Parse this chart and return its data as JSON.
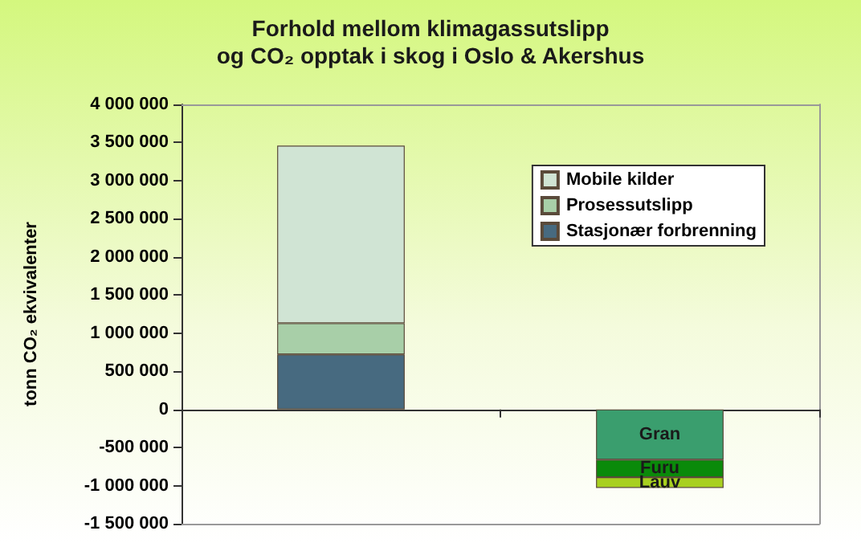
{
  "chart_data": {
    "type": "bar",
    "title": "Forhold mellom klimagassutslipp\nog CO₂ opptak i skog i Oslo & Akershus",
    "ylabel": "tonn CO₂ ekvivalenter",
    "categories": [
      null,
      null
    ],
    "stacked": true,
    "series": [
      {
        "name": "Stasjonær forbrenning",
        "color": "#476a80",
        "values": [
          720000,
          null
        ]
      },
      {
        "name": "Prosessutslipp",
        "color": "#a8cfa8",
        "values": [
          410000,
          null
        ]
      },
      {
        "name": "Mobile kilder",
        "color": "#d0e4d4",
        "values": [
          2330000,
          null
        ]
      },
      {
        "name": "Gran",
        "color": "#3a9e6e",
        "values": [
          null,
          -660000
        ]
      },
      {
        "name": "Furu",
        "color": "#0a8a0a",
        "values": [
          null,
          -230000
        ]
      },
      {
        "name": "Lauv",
        "color": "#a8d020",
        "values": [
          null,
          -140000
        ]
      }
    ],
    "ylim": [
      -1500000,
      4000000
    ],
    "yticks": [
      -1500000,
      -1000000,
      -500000,
      0,
      500000,
      1000000,
      1500000,
      2000000,
      2500000,
      3000000,
      3500000,
      4000000
    ],
    "legend": "top right"
  }
}
